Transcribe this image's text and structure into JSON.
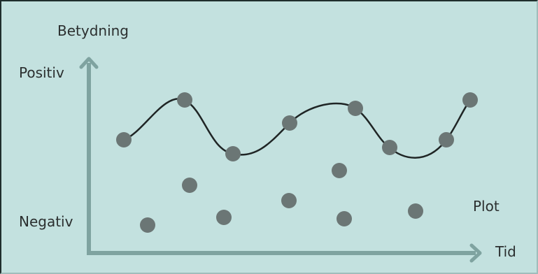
{
  "labels": {
    "y_axis": "Betydning",
    "positive": "Positiv",
    "negative": "Negativ",
    "x_axis": "Tid",
    "plot": "Plot"
  },
  "colors": {
    "background": "#c3e1df",
    "axis": "#7fa3a0",
    "dot": "#6b7675",
    "curve": "#1f2525",
    "text": "#2b2f2f"
  }
}
